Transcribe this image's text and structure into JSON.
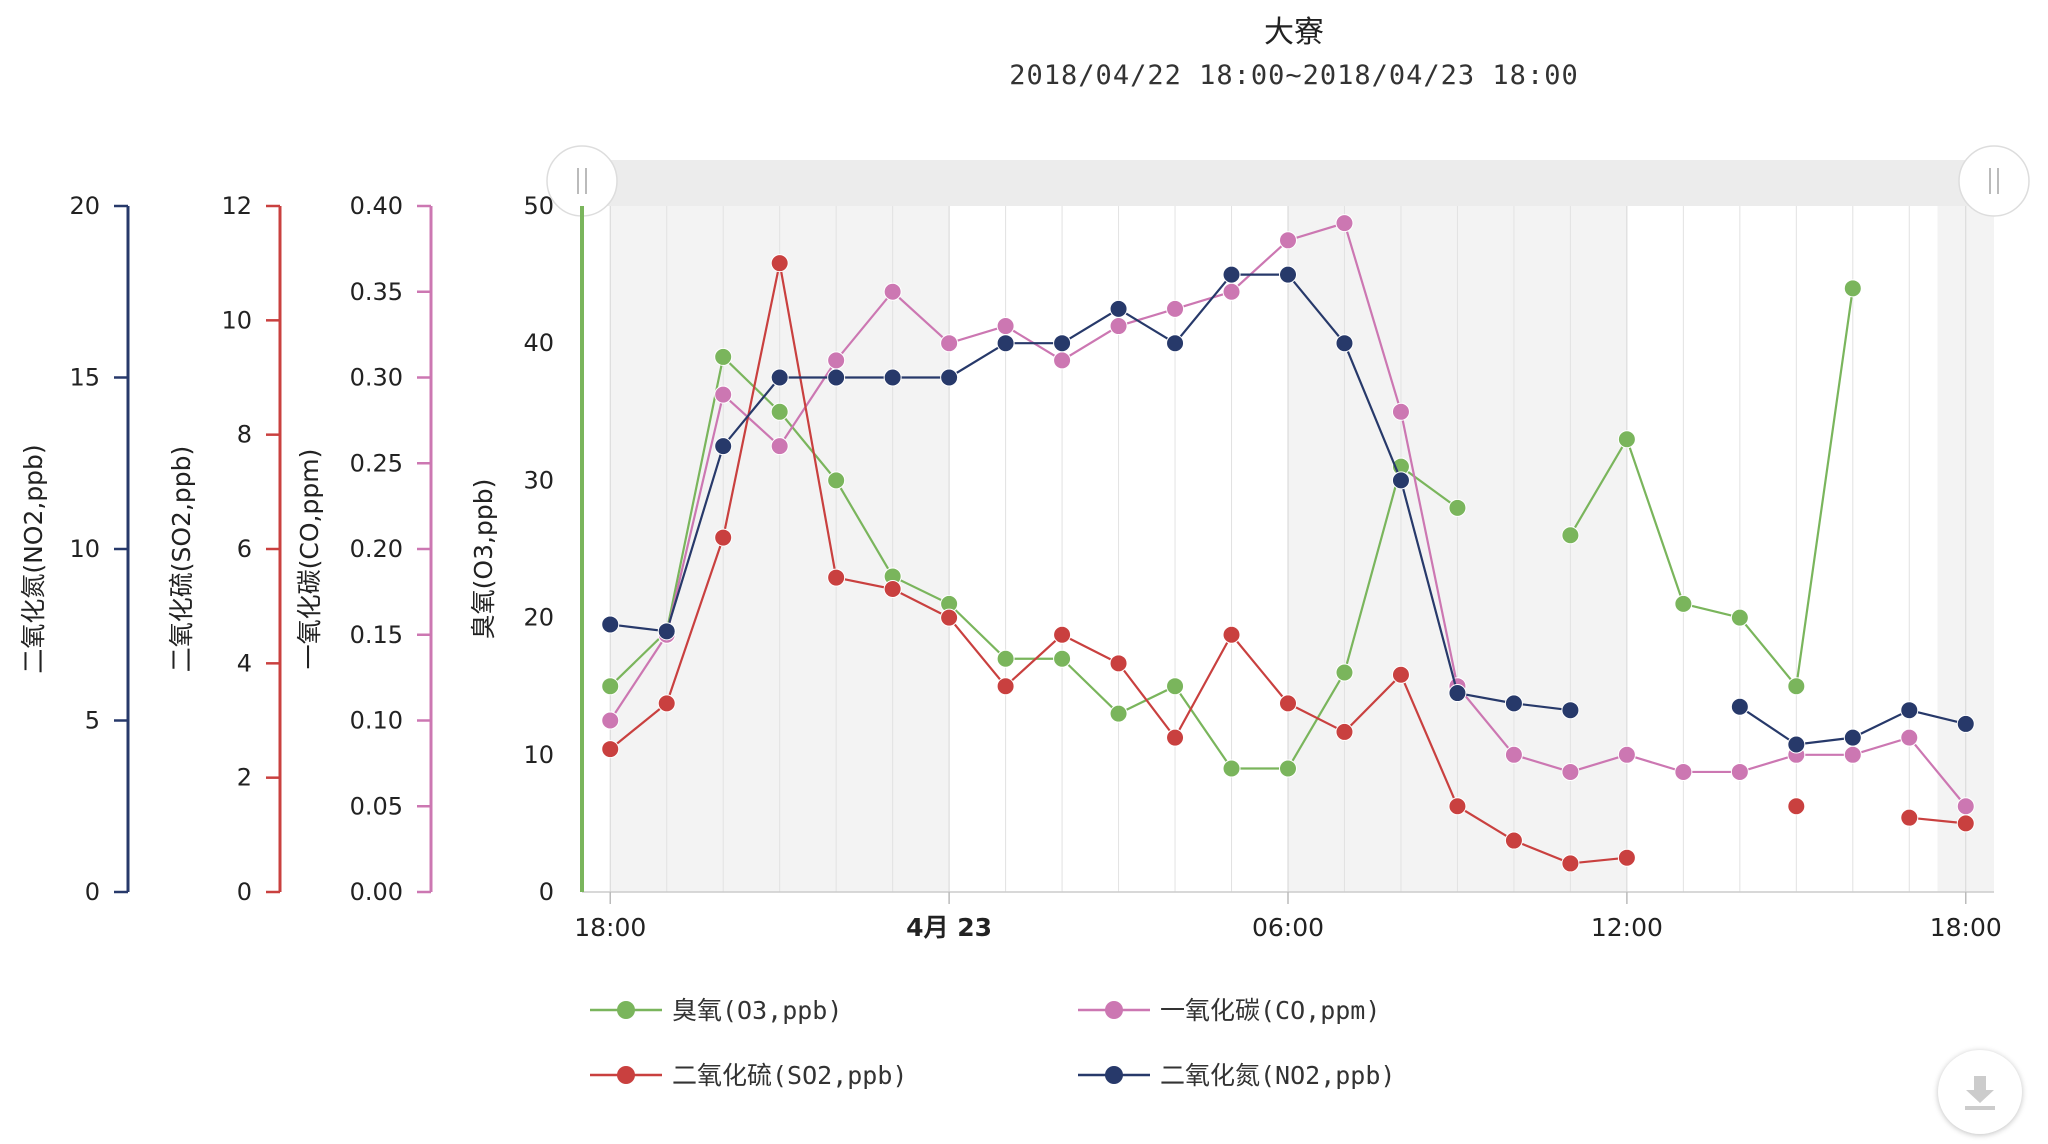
{
  "chart_data": {
    "type": "line",
    "title": "大寮",
    "subtitle": "2018/04/22 18:00~2018/04/23 18:00",
    "x_hours": [
      18,
      19,
      20,
      21,
      22,
      23,
      24,
      25,
      26,
      27,
      28,
      29,
      30,
      31,
      32,
      33,
      34,
      35,
      36,
      37,
      38,
      39,
      40,
      41,
      42
    ],
    "x_ticks": [
      {
        "hour": 18,
        "label": "18:00",
        "bold": false
      },
      {
        "hour": 24,
        "label": "4月 23",
        "bold": true
      },
      {
        "hour": 30,
        "label": "06:00",
        "bold": false
      },
      {
        "hour": 36,
        "label": "12:00",
        "bold": false
      },
      {
        "hour": 42,
        "label": "18:00",
        "bold": false
      }
    ],
    "shaded_bands": [
      [
        18,
        24
      ],
      [
        30,
        36
      ],
      [
        41.5,
        42.5
      ]
    ],
    "axes": [
      {
        "id": "no2",
        "title": "二氧化氮(NO2,ppb)",
        "color": "#27396a",
        "min": 0,
        "max": 20,
        "ticks": [
          "0",
          "5",
          "10",
          "15",
          "20"
        ]
      },
      {
        "id": "so2",
        "title": "二氧化硫(SO2,ppb)",
        "color": "#c9403f",
        "min": 0,
        "max": 12,
        "ticks": [
          "0",
          "2",
          "4",
          "6",
          "8",
          "10",
          "12"
        ]
      },
      {
        "id": "co",
        "title": "一氧化碳(CO,ppm)",
        "color": "#cc77b2",
        "min": 0,
        "max": 0.4,
        "ticks": [
          "0.00",
          "0.05",
          "0.10",
          "0.15",
          "0.20",
          "0.25",
          "0.30",
          "0.35",
          "0.40"
        ]
      },
      {
        "id": "o3",
        "title": "臭氧(O3,ppb)",
        "color": "#7ab55c",
        "min": 0,
        "max": 50,
        "ticks": [
          "0",
          "10",
          "20",
          "30",
          "40",
          "50"
        ]
      }
    ],
    "series": [
      {
        "name": "臭氧(O3,ppb)",
        "axis": "o3",
        "color": "#7ab55c",
        "values": [
          15,
          19,
          39,
          35,
          30,
          23,
          21,
          17,
          17,
          13,
          15,
          9,
          9,
          16,
          31,
          28,
          null,
          26,
          33,
          21,
          20,
          15,
          44,
          null,
          null
        ]
      },
      {
        "name": "一氧化碳(CO,ppm)",
        "axis": "co",
        "color": "#cc77b2",
        "values": [
          0.1,
          0.15,
          0.29,
          0.26,
          0.31,
          0.35,
          0.32,
          0.33,
          0.31,
          0.33,
          0.34,
          0.35,
          0.38,
          0.39,
          0.28,
          0.12,
          0.08,
          0.07,
          0.08,
          0.07,
          0.07,
          0.08,
          0.08,
          0.09,
          0.05
        ]
      },
      {
        "name": "二氧化硫(SO2,ppb)",
        "axis": "so2",
        "color": "#c9403f",
        "values": [
          2.5,
          3.3,
          6.2,
          11,
          5.5,
          5.3,
          4.8,
          3.6,
          4.5,
          4.0,
          2.7,
          4.5,
          3.3,
          2.8,
          3.8,
          1.5,
          0.9,
          0.5,
          0.6,
          null,
          null,
          1.5,
          null,
          1.3,
          1.2
        ]
      },
      {
        "name": "二氧化氮(NO2,ppb)",
        "axis": "no2",
        "color": "#27396a",
        "values": [
          7.8,
          7.6,
          13,
          15,
          15,
          15,
          15,
          16,
          16,
          17,
          16,
          18,
          18,
          16,
          12,
          5.8,
          5.5,
          5.3,
          null,
          null,
          5.4,
          4.3,
          4.5,
          5.3,
          4.9
        ]
      }
    ],
    "legend": [
      {
        "name": "臭氧(O3,ppb)",
        "color": "#7ab55c"
      },
      {
        "name": "一氧化碳(CO,ppm)",
        "color": "#cc77b2"
      },
      {
        "name": "二氧化硫(SO2,ppb)",
        "color": "#c9403f"
      },
      {
        "name": "二氧化氮(NO2,ppb)",
        "color": "#27396a"
      }
    ],
    "legend_placement": "bottom",
    "grid": "vertical",
    "colors": {
      "band": "#f3f3f3",
      "grid": "#e2e2e2",
      "navigator": "#ececec"
    },
    "download_icon": "download-icon"
  }
}
